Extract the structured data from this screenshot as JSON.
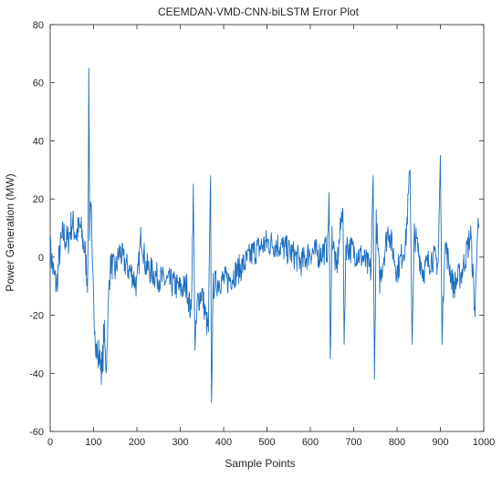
{
  "chart_data": {
    "type": "line",
    "title": "CEEMDAN-VMD-CNN-biLSTM Error Plot",
    "xlabel": "Sample Points",
    "ylabel": "Power Generation (MW)",
    "xlim": [
      0,
      1000
    ],
    "ylim": [
      -60,
      80
    ],
    "xticks": [
      0,
      100,
      200,
      300,
      400,
      500,
      600,
      700,
      800,
      900,
      1000
    ],
    "yticks": [
      -60,
      -40,
      -20,
      0,
      20,
      40,
      60,
      80
    ],
    "grid": false,
    "line_color": "#1f6fbf",
    "n_points": 990,
    "anchors": [
      [
        0,
        3
      ],
      [
        8,
        -6
      ],
      [
        15,
        -10
      ],
      [
        22,
        2
      ],
      [
        30,
        8
      ],
      [
        40,
        5
      ],
      [
        50,
        12
      ],
      [
        60,
        8
      ],
      [
        70,
        10
      ],
      [
        80,
        2
      ],
      [
        86,
        -8
      ],
      [
        88,
        20
      ],
      [
        89,
        65
      ],
      [
        91,
        10
      ],
      [
        94,
        22
      ],
      [
        97,
        -5
      ],
      [
        100,
        -15
      ],
      [
        103,
        -22
      ],
      [
        106,
        -30
      ],
      [
        110,
        -35
      ],
      [
        115,
        -32
      ],
      [
        120,
        -40
      ],
      [
        124,
        -25
      ],
      [
        128,
        -38
      ],
      [
        132,
        -30
      ],
      [
        136,
        -8
      ],
      [
        140,
        -2
      ],
      [
        150,
        -5
      ],
      [
        160,
        2
      ],
      [
        175,
        -3
      ],
      [
        190,
        -6
      ],
      [
        200,
        -10
      ],
      [
        210,
        8
      ],
      [
        220,
        -3
      ],
      [
        240,
        -6
      ],
      [
        260,
        -8
      ],
      [
        280,
        -9
      ],
      [
        300,
        -11
      ],
      [
        315,
        -10
      ],
      [
        325,
        -20
      ],
      [
        330,
        22
      ],
      [
        334,
        -32
      ],
      [
        340,
        -15
      ],
      [
        350,
        -12
      ],
      [
        360,
        -22
      ],
      [
        365,
        -25
      ],
      [
        370,
        28
      ],
      [
        372,
        -50
      ],
      [
        376,
        -10
      ],
      [
        390,
        -8
      ],
      [
        410,
        -8
      ],
      [
        430,
        -5
      ],
      [
        450,
        -2
      ],
      [
        470,
        2
      ],
      [
        500,
        5
      ],
      [
        530,
        4
      ],
      [
        560,
        1
      ],
      [
        580,
        -2
      ],
      [
        600,
        2
      ],
      [
        620,
        1
      ],
      [
        640,
        3
      ],
      [
        643,
        22
      ],
      [
        646,
        -35
      ],
      [
        650,
        8
      ],
      [
        660,
        -5
      ],
      [
        670,
        10
      ],
      [
        675,
        20
      ],
      [
        678,
        -30
      ],
      [
        682,
        4
      ],
      [
        700,
        2
      ],
      [
        720,
        0
      ],
      [
        740,
        -5
      ],
      [
        745,
        28
      ],
      [
        748,
        -42
      ],
      [
        752,
        12
      ],
      [
        760,
        -8
      ],
      [
        780,
        10
      ],
      [
        800,
        -5
      ],
      [
        820,
        5
      ],
      [
        830,
        30
      ],
      [
        835,
        -30
      ],
      [
        840,
        8
      ],
      [
        860,
        -5
      ],
      [
        880,
        0
      ],
      [
        895,
        -2
      ],
      [
        900,
        35
      ],
      [
        904,
        -30
      ],
      [
        910,
        5
      ],
      [
        930,
        -10
      ],
      [
        950,
        -5
      ],
      [
        970,
        8
      ],
      [
        980,
        -20
      ],
      [
        985,
        10
      ],
      [
        989,
        8
      ]
    ]
  }
}
